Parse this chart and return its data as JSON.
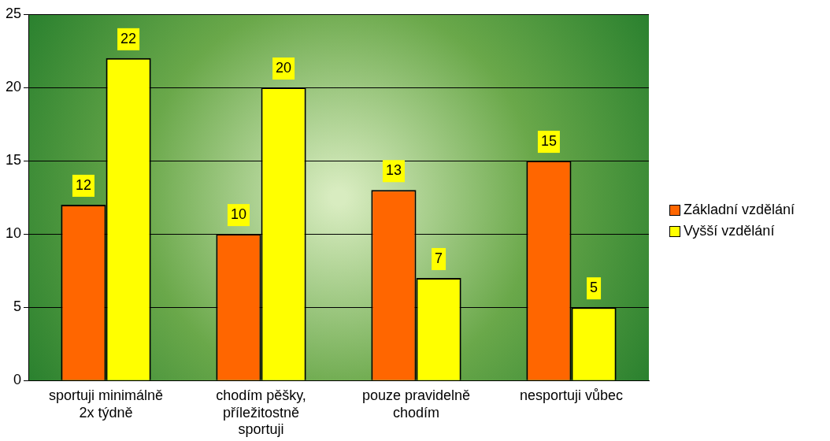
{
  "chart_data": {
    "type": "bar",
    "categories": [
      "sportuji minimálně 2x týdně",
      "chodím pěšky, příležitostně sportuji",
      "pouze pravidelně chodím",
      "nesportuji vůbec"
    ],
    "series": [
      {
        "name": "Základní vzdělání",
        "color": "#ff6600",
        "values": [
          12,
          10,
          13,
          15
        ]
      },
      {
        "name": "Vyšší vzdělání",
        "color": "#ffff00",
        "values": [
          22,
          20,
          7,
          5
        ]
      }
    ],
    "ylim": [
      0,
      25
    ],
    "yticks": [
      0,
      5,
      10,
      15,
      20,
      25
    ],
    "grid": "y",
    "legend": "right",
    "data_labels": true
  }
}
